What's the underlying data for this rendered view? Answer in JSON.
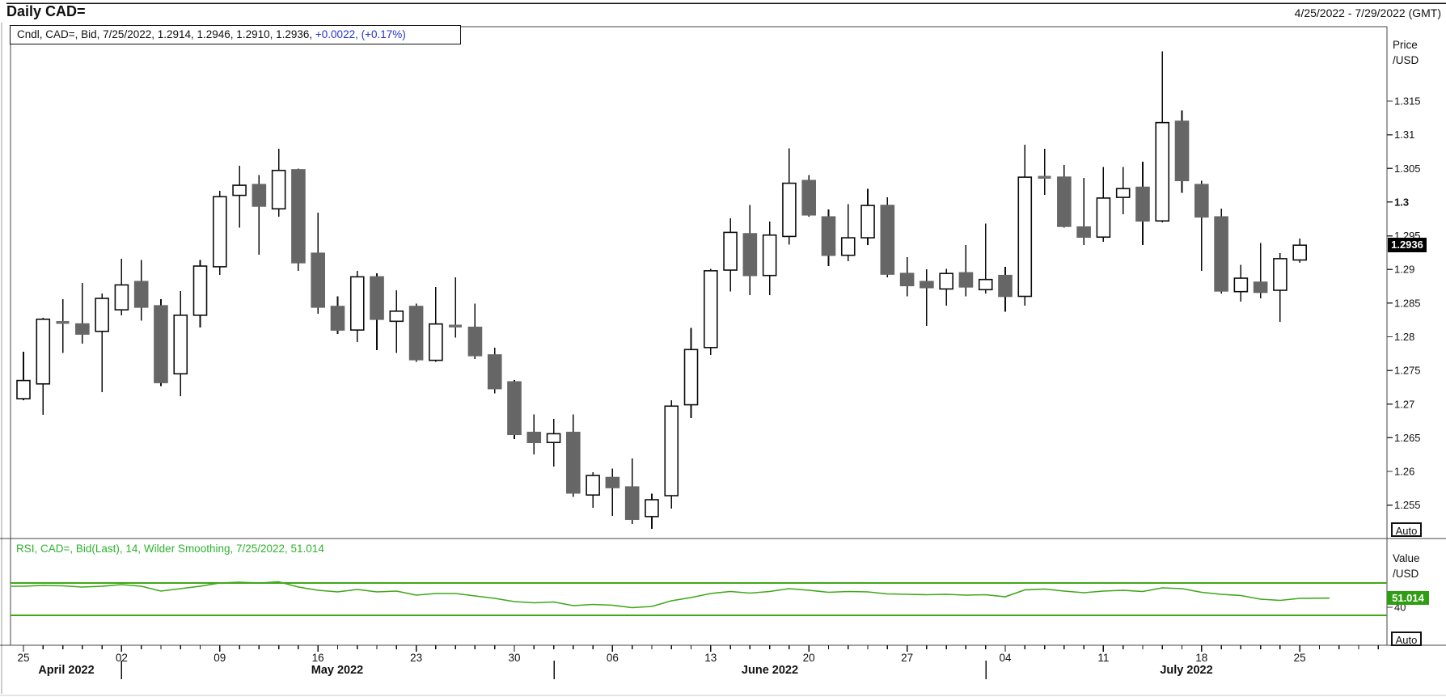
{
  "window": {
    "title": "Daily CAD=",
    "date_range": "4/25/2022 - 7/29/2022 (GMT)"
  },
  "price_legend": {
    "main": "Cndl, CAD=, Bid, 7/25/2022, 1.2914, 1.2946, 1.2910, 1.2936, ",
    "change": "+0.0022, (+0.17%)"
  },
  "rsi_legend": "RSI, CAD=, Bid(Last),  14, Wilder Smoothing, 7/25/2022, 51.014",
  "price_axis": {
    "unit_line1": "Price",
    "unit_line2": "/USD",
    "ticks": [
      "1.315",
      "1.31",
      "1.305",
      "1.3",
      "1.295",
      "1.29",
      "1.285",
      "1.28",
      "1.275",
      "1.27",
      "1.265",
      "1.26",
      "1.255"
    ],
    "bold_tick": "1.3",
    "last_price_badge": "1.2936",
    "auto_label": "Auto"
  },
  "rsi_axis": {
    "unit_line1": "Value",
    "unit_line2": "/USD",
    "ticks": [
      "40"
    ],
    "last_value_badge": "51.014",
    "auto_label": "Auto"
  },
  "x_axis": {
    "week_labels": [
      "25",
      "02",
      "09",
      "16",
      "23",
      "30",
      "06",
      "13",
      "20",
      "27",
      "04",
      "11",
      "18",
      "25"
    ],
    "month_labels": [
      "April 2022",
      "May 2022",
      "June 2022",
      "July 2022"
    ]
  },
  "colors": {
    "up_fill": "#ffffff",
    "down_fill": "#666666",
    "wick": "#0d0d0d",
    "doji": "#6f6f6f",
    "rsi_green": "#3fa818",
    "rsi_badge_bg": "#2f9e12",
    "legend_green": "#2db32d",
    "change_blue": "#2233cc",
    "badge_bg": "#000000",
    "border": "#444444",
    "axis_text": "#111111"
  },
  "chart_data": [
    {
      "type": "candlestick",
      "title": "Cndl, CAD=, Bid (Daily)",
      "ylabel": "Price /USD",
      "ylim": [
        1.2503,
        1.3262
      ],
      "yticks": [
        1.315,
        1.31,
        1.305,
        1.3,
        1.295,
        1.29,
        1.285,
        1.28,
        1.275,
        1.27,
        1.265,
        1.26,
        1.255
      ],
      "last": 1.2936,
      "x": [
        "4/25",
        "4/26",
        "4/27",
        "4/28",
        "4/29",
        "5/02",
        "5/03",
        "5/04",
        "5/05",
        "5/06",
        "5/09",
        "5/10",
        "5/11",
        "5/12",
        "5/13",
        "5/16",
        "5/17",
        "5/18",
        "5/19",
        "5/20",
        "5/23",
        "5/24",
        "5/25",
        "5/26",
        "5/27",
        "5/30",
        "5/31",
        "6/01",
        "6/02",
        "6/03",
        "6/06",
        "6/07",
        "6/08",
        "6/09",
        "6/10",
        "6/13",
        "6/14",
        "6/15",
        "6/16",
        "6/17",
        "6/20",
        "6/21",
        "6/22",
        "6/23",
        "6/24",
        "6/27",
        "6/28",
        "6/29",
        "6/30",
        "7/01",
        "7/04",
        "7/05",
        "7/06",
        "7/07",
        "7/08",
        "7/11",
        "7/12",
        "7/13",
        "7/14",
        "7/15",
        "7/18",
        "7/19",
        "7/20",
        "7/21",
        "7/22",
        "7/25"
      ],
      "ohlc": [
        [
          1.2708,
          1.2778,
          1.2706,
          1.2735
        ],
        [
          1.273,
          1.2828,
          1.2684,
          1.2826
        ],
        [
          1.2821,
          1.2856,
          1.2776,
          1.2821
        ],
        [
          1.2819,
          1.288,
          1.279,
          1.2804
        ],
        [
          1.2808,
          1.2864,
          1.2718,
          1.2857
        ],
        [
          1.284,
          1.2916,
          1.2832,
          1.2877
        ],
        [
          1.2882,
          1.2914,
          1.2824,
          1.2844
        ],
        [
          1.2846,
          1.2856,
          1.2727,
          1.2732
        ],
        [
          1.2745,
          1.2868,
          1.2712,
          1.2832
        ],
        [
          1.2832,
          1.2914,
          1.2814,
          1.2905
        ],
        [
          1.2904,
          1.3017,
          1.2892,
          1.3008
        ],
        [
          1.301,
          1.3054,
          1.2962,
          1.3025
        ],
        [
          1.3026,
          1.304,
          1.2922,
          1.2994
        ],
        [
          1.299,
          1.3079,
          1.2978,
          1.3047
        ],
        [
          1.3048,
          1.305,
          1.2898,
          1.291
        ],
        [
          1.2924,
          1.2984,
          1.2834,
          1.2844
        ],
        [
          1.2845,
          1.286,
          1.2804,
          1.281
        ],
        [
          1.281,
          1.2898,
          1.2792,
          1.2889
        ],
        [
          1.2889,
          1.2894,
          1.278,
          1.2826
        ],
        [
          1.2823,
          1.2869,
          1.2776,
          1.2838
        ],
        [
          1.2845,
          1.2849,
          1.2763,
          1.2766
        ],
        [
          1.2765,
          1.2874,
          1.2763,
          1.2819
        ],
        [
          1.2816,
          1.2888,
          1.2799,
          1.2816
        ],
        [
          1.2814,
          1.2849,
          1.2767,
          1.2772
        ],
        [
          1.2773,
          1.2784,
          1.2716,
          1.2723
        ],
        [
          1.2733,
          1.2736,
          1.2648,
          1.2655
        ],
        [
          1.2658,
          1.2685,
          1.2625,
          1.2643
        ],
        [
          1.2643,
          1.2678,
          1.2607,
          1.2656
        ],
        [
          1.2658,
          1.2685,
          1.2562,
          1.2568
        ],
        [
          1.2565,
          1.2599,
          1.2546,
          1.2594
        ],
        [
          1.2591,
          1.2604,
          1.2534,
          1.2576
        ],
        [
          1.2577,
          1.2619,
          1.2522,
          1.2529
        ],
        [
          1.2533,
          1.2567,
          1.2515,
          1.2558
        ],
        [
          1.2564,
          1.2706,
          1.2545,
          1.2697
        ],
        [
          1.2699,
          1.2813,
          1.2679,
          1.2781
        ],
        [
          1.2784,
          1.2901,
          1.2773,
          1.2898
        ],
        [
          1.2899,
          1.2976,
          1.2867,
          1.2955
        ],
        [
          1.2953,
          1.2996,
          1.2862,
          1.2891
        ],
        [
          1.2891,
          1.2971,
          1.2862,
          1.2951
        ],
        [
          1.2949,
          1.308,
          1.2937,
          1.3028
        ],
        [
          1.3032,
          1.304,
          1.2978,
          1.2981
        ],
        [
          1.2978,
          1.2989,
          1.2905,
          1.2921
        ],
        [
          1.2921,
          1.2997,
          1.2912,
          1.2947
        ],
        [
          1.2947,
          1.302,
          1.2936,
          1.2995
        ],
        [
          1.2995,
          1.3007,
          1.2888,
          1.2893
        ],
        [
          1.2894,
          1.2918,
          1.286,
          1.2876
        ],
        [
          1.2882,
          1.29,
          1.2816,
          1.2873
        ],
        [
          1.2871,
          1.2901,
          1.2846,
          1.2894
        ],
        [
          1.2895,
          1.2936,
          1.286,
          1.2874
        ],
        [
          1.287,
          1.2968,
          1.2864,
          1.2885
        ],
        [
          1.2891,
          1.2904,
          1.2837,
          1.286
        ],
        [
          1.286,
          1.3085,
          1.2846,
          1.3037
        ],
        [
          1.3037,
          1.3079,
          1.3011,
          1.3037
        ],
        [
          1.3037,
          1.3055,
          1.2962,
          1.2964
        ],
        [
          1.2963,
          1.3036,
          1.2936,
          1.2948
        ],
        [
          1.2948,
          1.3052,
          1.2941,
          1.3006
        ],
        [
          1.3007,
          1.3052,
          1.2982,
          1.302
        ],
        [
          1.3022,
          1.306,
          1.2936,
          1.2972
        ],
        [
          1.2972,
          1.3224,
          1.297,
          1.3118
        ],
        [
          1.312,
          1.3136,
          1.3014,
          1.3032
        ],
        [
          1.3026,
          1.3032,
          1.2898,
          1.2978
        ],
        [
          1.2978,
          1.299,
          1.2864,
          1.2868
        ],
        [
          1.2867,
          1.2907,
          1.2852,
          1.2887
        ],
        [
          1.2881,
          1.2939,
          1.2857,
          1.2866
        ],
        [
          1.2869,
          1.2924,
          1.2822,
          1.2916
        ],
        [
          1.2914,
          1.2946,
          1.291,
          1.2936
        ]
      ]
    },
    {
      "type": "line",
      "title": "RSI, CAD=, Bid(Last), 14, Wilder Smoothing",
      "ylabel": "Value /USD",
      "bands": [
        70,
        30
      ],
      "yticks": [
        40
      ],
      "last": 51.014,
      "values": [
        66,
        67,
        66.5,
        65,
        66,
        68,
        66,
        60,
        63,
        66,
        70,
        71,
        70,
        71.5,
        65,
        61,
        59,
        62,
        59,
        60,
        55,
        57,
        57,
        54,
        51,
        47,
        45.5,
        46.5,
        42,
        43.5,
        42.5,
        39.5,
        41,
        48,
        52,
        57,
        59.5,
        57.5,
        59.5,
        63,
        61,
        58.5,
        59.5,
        59,
        56.5,
        56,
        55.5,
        56,
        55,
        55.5,
        53,
        61.5,
        62.5,
        60,
        58,
        60,
        61,
        59.5,
        64,
        63,
        58.5,
        56,
        54.5,
        50,
        48.5,
        51.014
      ]
    }
  ]
}
